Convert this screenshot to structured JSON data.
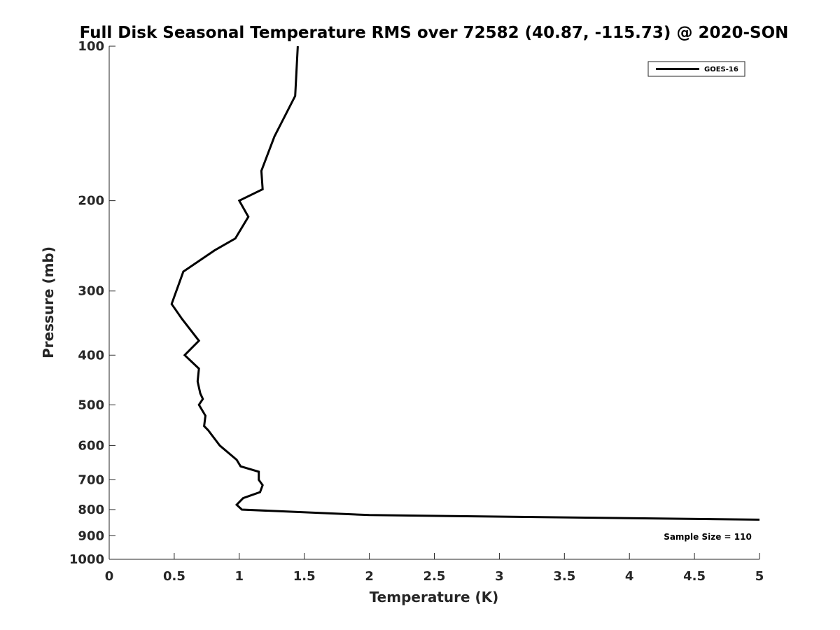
{
  "chart_data": {
    "type": "line",
    "title": "Full Disk Seasonal Temperature RMS over 72582 (40.87, -115.73) @ 2020-SON",
    "xlabel": "Temperature (K)",
    "ylabel": "Pressure (mb)",
    "xlim": [
      0,
      5
    ],
    "ylim": [
      100,
      1000
    ],
    "y_scale": "log",
    "y_reversed": true,
    "x_ticks": [
      0,
      0.5,
      1,
      1.5,
      2,
      2.5,
      3,
      3.5,
      4,
      4.5,
      5
    ],
    "x_tick_labels": [
      "0",
      "0.5",
      "1",
      "1.5",
      "2",
      "2.5",
      "3",
      "3.5",
      "4",
      "4.5",
      "5"
    ],
    "y_ticks": [
      100,
      200,
      300,
      400,
      500,
      600,
      700,
      800,
      900,
      1000
    ],
    "y_tick_labels": [
      "100",
      "200",
      "300",
      "400",
      "500",
      "600",
      "700",
      "800",
      "900",
      "1000"
    ],
    "grid": false,
    "legend_position": "top-right",
    "series": [
      {
        "name": "GOES-16",
        "color": "#000000",
        "points": [
          {
            "x": 1.45,
            "p": 100
          },
          {
            "x": 1.43,
            "p": 125
          },
          {
            "x": 1.27,
            "p": 150
          },
          {
            "x": 1.17,
            "p": 175
          },
          {
            "x": 1.18,
            "p": 190
          },
          {
            "x": 1.0,
            "p": 200
          },
          {
            "x": 1.07,
            "p": 215
          },
          {
            "x": 0.97,
            "p": 237
          },
          {
            "x": 0.81,
            "p": 250
          },
          {
            "x": 0.57,
            "p": 275
          },
          {
            "x": 0.48,
            "p": 318
          },
          {
            "x": 0.56,
            "p": 340
          },
          {
            "x": 0.69,
            "p": 375
          },
          {
            "x": 0.58,
            "p": 400
          },
          {
            "x": 0.69,
            "p": 425
          },
          {
            "x": 0.68,
            "p": 450
          },
          {
            "x": 0.7,
            "p": 475
          },
          {
            "x": 0.72,
            "p": 487
          },
          {
            "x": 0.69,
            "p": 500
          },
          {
            "x": 0.74,
            "p": 525
          },
          {
            "x": 0.73,
            "p": 550
          },
          {
            "x": 0.76,
            "p": 560
          },
          {
            "x": 0.85,
            "p": 600
          },
          {
            "x": 0.98,
            "p": 640
          },
          {
            "x": 1.01,
            "p": 659
          },
          {
            "x": 1.15,
            "p": 675
          },
          {
            "x": 1.15,
            "p": 700
          },
          {
            "x": 1.18,
            "p": 717
          },
          {
            "x": 1.16,
            "p": 740
          },
          {
            "x": 1.03,
            "p": 760
          },
          {
            "x": 0.98,
            "p": 783
          },
          {
            "x": 1.02,
            "p": 800
          },
          {
            "x": 2.0,
            "p": 820
          },
          {
            "x": 5.0,
            "p": 837
          }
        ]
      }
    ],
    "annotations": [
      {
        "text": "Sample Size = 110",
        "position": "bottom-right"
      }
    ]
  }
}
